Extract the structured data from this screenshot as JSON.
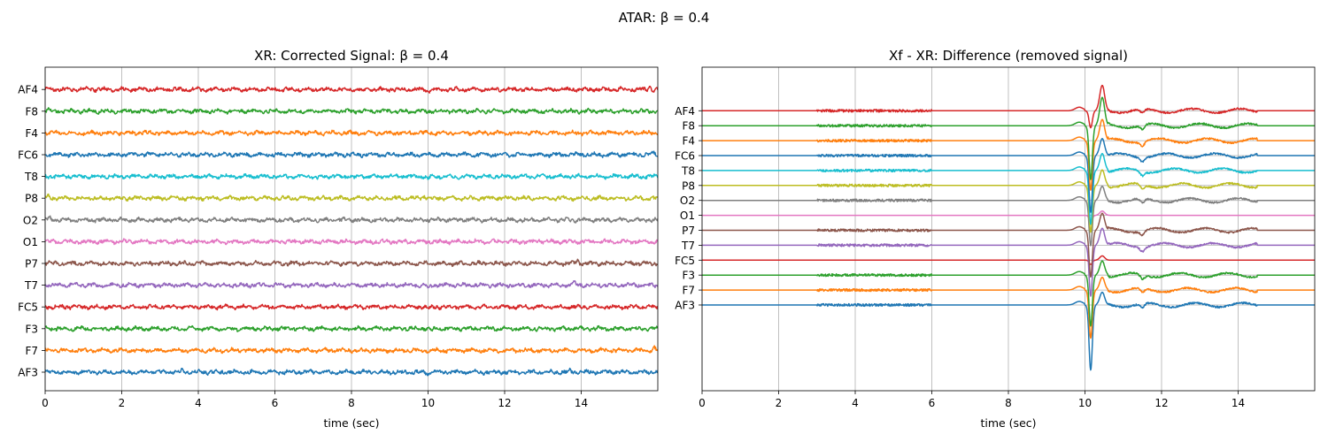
{
  "suptitle": "ATAR: β = 0.4",
  "chart_data": [
    {
      "type": "line",
      "title": "XR: Corrected Signal: β = 0.4",
      "xlabel": "time (sec)",
      "ylabel": "",
      "xlim": [
        0,
        16
      ],
      "xticks": [
        0,
        2,
        4,
        6,
        8,
        10,
        12,
        14
      ],
      "grid": "vertical",
      "series": [
        {
          "name": "AF3",
          "color": "#1f77b4",
          "offset_slot": 0,
          "events": [
            [
              3.6,
              0.25
            ],
            [
              10.0,
              -0.3
            ],
            [
              13.7,
              0.2
            ]
          ]
        },
        {
          "name": "F7",
          "color": "#ff7f0e",
          "offset_slot": 1,
          "events": [
            [
              15.9,
              0.3
            ]
          ]
        },
        {
          "name": "F3",
          "color": "#2ca02c",
          "offset_slot": 2,
          "events": [
            [
              3.8,
              0.25
            ],
            [
              10.1,
              -0.2
            ]
          ]
        },
        {
          "name": "FC5",
          "color": "#d62728",
          "offset_slot": 3,
          "events": [
            [
              10.0,
              -0.3
            ]
          ]
        },
        {
          "name": "T7",
          "color": "#9467bd",
          "offset_slot": 4,
          "events": [
            [
              10.0,
              -0.35
            ],
            [
              13.8,
              0.3
            ]
          ]
        },
        {
          "name": "P7",
          "color": "#8c564b",
          "offset_slot": 5,
          "events": [
            [
              0.1,
              0.3
            ],
            [
              13.9,
              0.35
            ]
          ]
        },
        {
          "name": "O1",
          "color": "#e377c2",
          "offset_slot": 6,
          "events": [
            [
              12.9,
              0.2
            ]
          ]
        },
        {
          "name": "O2",
          "color": "#7f7f7f",
          "offset_slot": 7,
          "events": [
            [
              0.1,
              0.25
            ]
          ]
        },
        {
          "name": "P8",
          "color": "#bcbd22",
          "offset_slot": 8,
          "events": [
            [
              0.1,
              0.3
            ],
            [
              9.9,
              0.25
            ]
          ]
        },
        {
          "name": "T8",
          "color": "#17becf",
          "offset_slot": 9,
          "events": [
            [
              7.1,
              -0.3
            ],
            [
              8.1,
              -0.25
            ],
            [
              10.0,
              -0.3
            ]
          ]
        },
        {
          "name": "FC6",
          "color": "#1f77b4",
          "offset_slot": 10,
          "events": [
            [
              15.9,
              0.3
            ]
          ]
        },
        {
          "name": "F4",
          "color": "#ff7f0e",
          "offset_slot": 11,
          "events": []
        },
        {
          "name": "F8",
          "color": "#2ca02c",
          "offset_slot": 12,
          "events": [
            [
              0.1,
              0.25
            ]
          ]
        },
        {
          "name": "AF4",
          "color": "#d62728",
          "offset_slot": 13,
          "events": [
            [
              8.3,
              -0.3
            ],
            [
              10.0,
              -0.3
            ],
            [
              15.8,
              0.4
            ],
            [
              15.9,
              -0.3
            ]
          ]
        }
      ]
    },
    {
      "type": "line",
      "title": "Xf - XR: Difference (removed signal)",
      "xlabel": "time (sec)",
      "ylabel": "",
      "xlim": [
        0,
        16
      ],
      "xticks": [
        0,
        2,
        4,
        6,
        8,
        10,
        12,
        14
      ],
      "grid": "both",
      "artifact_time_sec": 10.2,
      "series": [
        {
          "name": "AF3",
          "color": "#1f77b4",
          "offset_slot": 0,
          "spike_depth": 4.6,
          "spike_height": 0.9
        },
        {
          "name": "F7",
          "color": "#ff7f0e",
          "offset_slot": 1,
          "spike_depth": 3.4,
          "spike_height": 0.9
        },
        {
          "name": "F3",
          "color": "#2ca02c",
          "offset_slot": 2,
          "spike_depth": 3.6,
          "spike_height": 1.0
        },
        {
          "name": "FC5",
          "color": "#d62728",
          "offset_slot": 3,
          "spike_depth": 0.3,
          "spike_height": 0.3
        },
        {
          "name": "T7",
          "color": "#9467bd",
          "offset_slot": 4,
          "spike_depth": 3.6,
          "spike_height": 1.2
        },
        {
          "name": "P7",
          "color": "#8c564b",
          "offset_slot": 5,
          "spike_depth": 3.3,
          "spike_height": 1.2
        },
        {
          "name": "O1",
          "color": "#e377c2",
          "offset_slot": 6,
          "spike_depth": 0.4,
          "spike_height": 0.3
        },
        {
          "name": "O2",
          "color": "#7f7f7f",
          "offset_slot": 7,
          "spike_depth": 3.2,
          "spike_height": 1.0
        },
        {
          "name": "P8",
          "color": "#bcbd22",
          "offset_slot": 8,
          "spike_depth": 3.3,
          "spike_height": 1.1
        },
        {
          "name": "T8",
          "color": "#17becf",
          "offset_slot": 9,
          "spike_depth": 3.8,
          "spike_height": 1.2
        },
        {
          "name": "FC6",
          "color": "#1f77b4",
          "offset_slot": 10,
          "spike_depth": 4.0,
          "spike_height": 1.2
        },
        {
          "name": "F4",
          "color": "#ff7f0e",
          "offset_slot": 11,
          "spike_depth": 3.5,
          "spike_height": 1.5
        },
        {
          "name": "F8",
          "color": "#2ca02c",
          "offset_slot": 12,
          "spike_depth": 3.8,
          "spike_height": 2.0
        },
        {
          "name": "AF4",
          "color": "#d62728",
          "offset_slot": 13,
          "spike_depth": 1.2,
          "spike_height": 1.8
        }
      ]
    }
  ]
}
